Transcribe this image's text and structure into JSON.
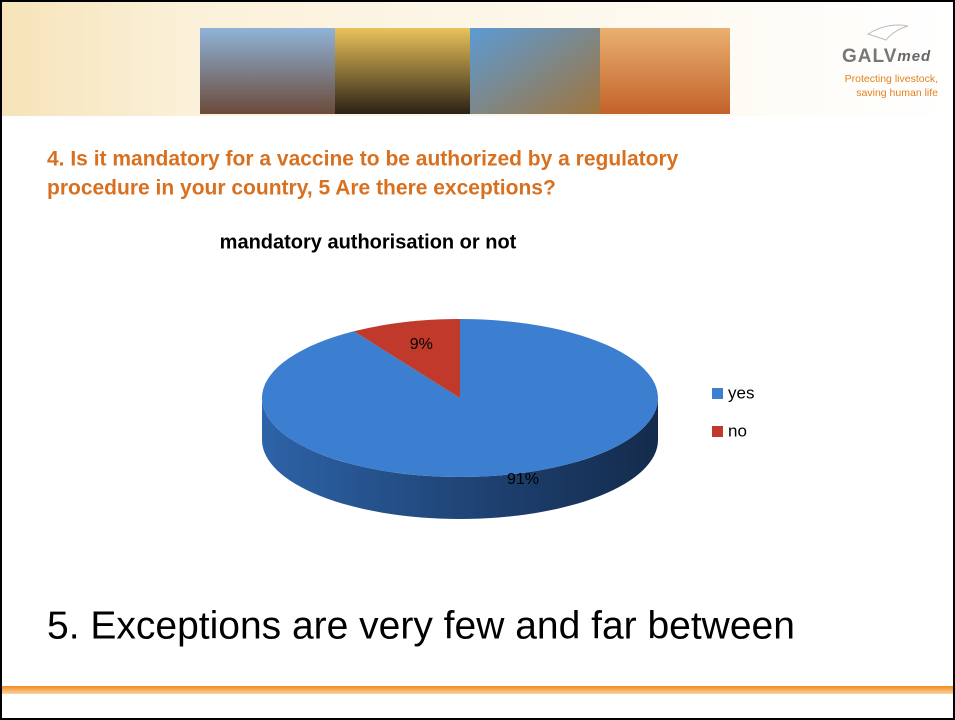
{
  "header": {
    "logo": {
      "name": "GALV",
      "suffix": "med"
    },
    "tagline_1": "Protecting livestock,",
    "tagline_2": "saving human life"
  },
  "question": {
    "line_1": "4. Is it mandatory for a vaccine to be authorized by a regulatory",
    "line_2": "procedure in your country, 5 Are there exceptions?"
  },
  "chart_data": {
    "type": "pie",
    "title": "mandatory authorisation or not",
    "categories": [
      "yes",
      "no"
    ],
    "values": [
      91,
      9
    ],
    "value_labels": [
      "91%",
      "9%"
    ],
    "colors": [
      "#3c7fd0",
      "#c0392b"
    ],
    "legend": "right"
  },
  "footer": {
    "text": "5. Exceptions are very few and far between"
  }
}
